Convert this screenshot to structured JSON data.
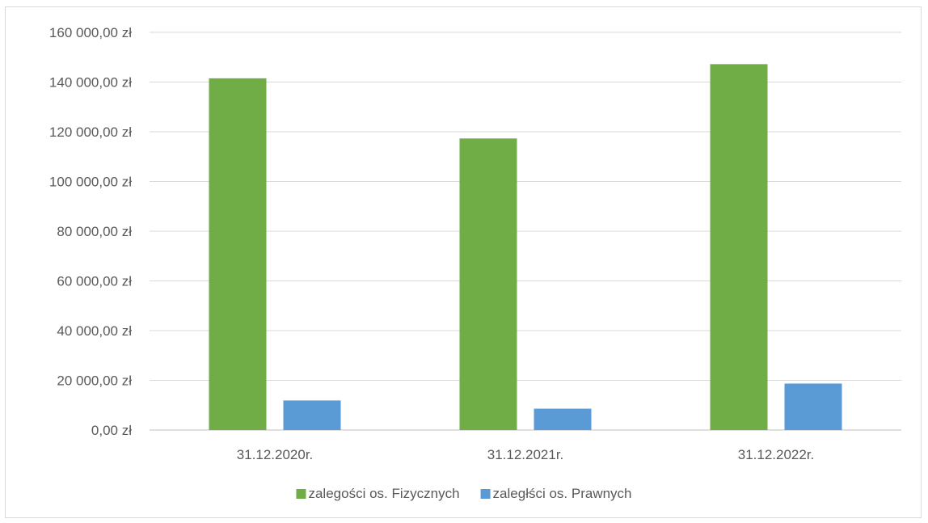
{
  "chart_data": {
    "type": "bar",
    "title": "",
    "xlabel": "",
    "ylabel": "",
    "ylim": [
      0,
      160000
    ],
    "y_ticks": [
      0,
      20000,
      40000,
      60000,
      80000,
      100000,
      120000,
      140000,
      160000
    ],
    "y_tick_labels": [
      "0,00 zł",
      "20 000,00 zł",
      "40 000,00 zł",
      "60 000,00 zł",
      "80 000,00 zł",
      "100 000,00 zł",
      "120 000,00 zł",
      "140 000,00 zł",
      "160 000,00 zł"
    ],
    "categories": [
      "31.12.2020r.",
      "31.12.2021r.",
      "31.12.2022r."
    ],
    "series": [
      {
        "name": "zalegości os. Fizycznych",
        "color": "#70ad47",
        "values": [
          141500,
          117300,
          147200
        ]
      },
      {
        "name": "zaległści os. Prawnych",
        "color": "#5b9bd5",
        "values": [
          11900,
          8600,
          18700
        ]
      }
    ],
    "grid": true,
    "legend_position": "bottom"
  }
}
